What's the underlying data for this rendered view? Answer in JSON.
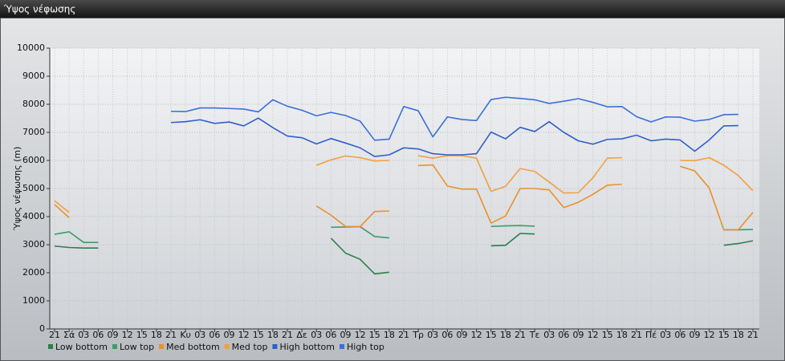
{
  "chart_data": {
    "type": "line",
    "title": "Ύψος νέφωσης",
    "ylabel": "Ύψος νέφωσης (m)",
    "categories": [
      "21",
      "Σά",
      "03",
      "06",
      "09",
      "12",
      "15",
      "18",
      "21",
      "Κυ",
      "03",
      "06",
      "09",
      "12",
      "15",
      "18",
      "21",
      "Δε",
      "03",
      "06",
      "09",
      "12",
      "15",
      "18",
      "21",
      "Τρ",
      "03",
      "06",
      "09",
      "12",
      "15",
      "18",
      "21",
      "Τε",
      "03",
      "06",
      "09",
      "12",
      "15",
      "18",
      "21",
      "Πέ",
      "03",
      "06",
      "09",
      "12",
      "15",
      "18",
      "21"
    ],
    "ylim": [
      0,
      10000
    ],
    "yticks": [
      0,
      1000,
      2000,
      3000,
      4000,
      5000,
      6000,
      7000,
      8000,
      9000,
      10000
    ],
    "grid": true,
    "series": [
      {
        "name": "Low bottom",
        "color": "#2a7f4f",
        "values": [
          2950,
          2900,
          2880,
          2880,
          null,
          null,
          null,
          null,
          null,
          null,
          null,
          null,
          null,
          null,
          null,
          null,
          null,
          null,
          null,
          3230,
          2700,
          2480,
          1960,
          2020,
          null,
          null,
          null,
          null,
          null,
          null,
          2960,
          2980,
          3400,
          3380,
          null,
          null,
          null,
          null,
          null,
          null,
          null,
          null,
          null,
          null,
          null,
          null,
          2980,
          3040,
          3140
        ]
      },
      {
        "name": "Low top",
        "color": "#3c9e6a",
        "values": [
          3370,
          3460,
          3080,
          3080,
          null,
          null,
          null,
          null,
          null,
          null,
          null,
          null,
          null,
          null,
          null,
          null,
          null,
          null,
          null,
          3620,
          3630,
          3640,
          3290,
          3240,
          null,
          null,
          null,
          null,
          null,
          null,
          3650,
          3670,
          3680,
          3660,
          null,
          null,
          null,
          null,
          null,
          null,
          null,
          null,
          null,
          null,
          null,
          null,
          3530,
          3530,
          3540
        ]
      },
      {
        "name": "Med bottom",
        "color": "#e8922a",
        "values": [
          4430,
          3960,
          null,
          null,
          null,
          null,
          null,
          null,
          null,
          null,
          null,
          null,
          null,
          null,
          null,
          null,
          null,
          null,
          4380,
          4050,
          3650,
          3640,
          4180,
          4200,
          null,
          5820,
          5840,
          5090,
          4980,
          4980,
          3770,
          4020,
          5000,
          5000,
          4950,
          4320,
          4510,
          4790,
          5120,
          5150,
          null,
          null,
          null,
          5790,
          5630,
          5020,
          3530,
          3530,
          4150
        ]
      },
      {
        "name": "Med top",
        "color": "#f0a040",
        "values": [
          4560,
          4150,
          null,
          null,
          null,
          null,
          null,
          null,
          null,
          null,
          null,
          null,
          null,
          null,
          null,
          null,
          null,
          null,
          5830,
          6020,
          6160,
          6100,
          5980,
          6000,
          null,
          6170,
          6080,
          6170,
          6170,
          6080,
          4900,
          5080,
          5710,
          5610,
          5230,
          4840,
          4850,
          5380,
          6080,
          6100,
          null,
          null,
          null,
          6000,
          5990,
          6100,
          5830,
          5460,
          4920
        ]
      },
      {
        "name": "High bottom",
        "color": "#3060c8",
        "values": [
          null,
          null,
          null,
          null,
          null,
          null,
          null,
          null,
          7350,
          7380,
          7450,
          7320,
          7370,
          7230,
          7510,
          7170,
          6870,
          6810,
          6590,
          6780,
          6620,
          6450,
          6140,
          6200,
          6450,
          6410,
          6240,
          6200,
          6200,
          6240,
          7010,
          6770,
          7180,
          7030,
          7380,
          7000,
          6700,
          6580,
          6750,
          6770,
          6900,
          6700,
          6760,
          6730,
          6330,
          6730,
          7230,
          7240,
          null
        ]
      },
      {
        "name": "High top",
        "color": "#3a70d8",
        "values": [
          null,
          null,
          null,
          null,
          null,
          null,
          null,
          null,
          7750,
          7740,
          7870,
          7870,
          7850,
          7830,
          7730,
          8160,
          7930,
          7790,
          7590,
          7710,
          7600,
          7400,
          6720,
          6760,
          7920,
          7770,
          6840,
          7550,
          7460,
          7420,
          8170,
          8250,
          8210,
          8160,
          8030,
          8110,
          8200,
          8070,
          7910,
          7920,
          7560,
          7370,
          7550,
          7540,
          7400,
          7460,
          7630,
          7640,
          null
        ]
      }
    ]
  }
}
